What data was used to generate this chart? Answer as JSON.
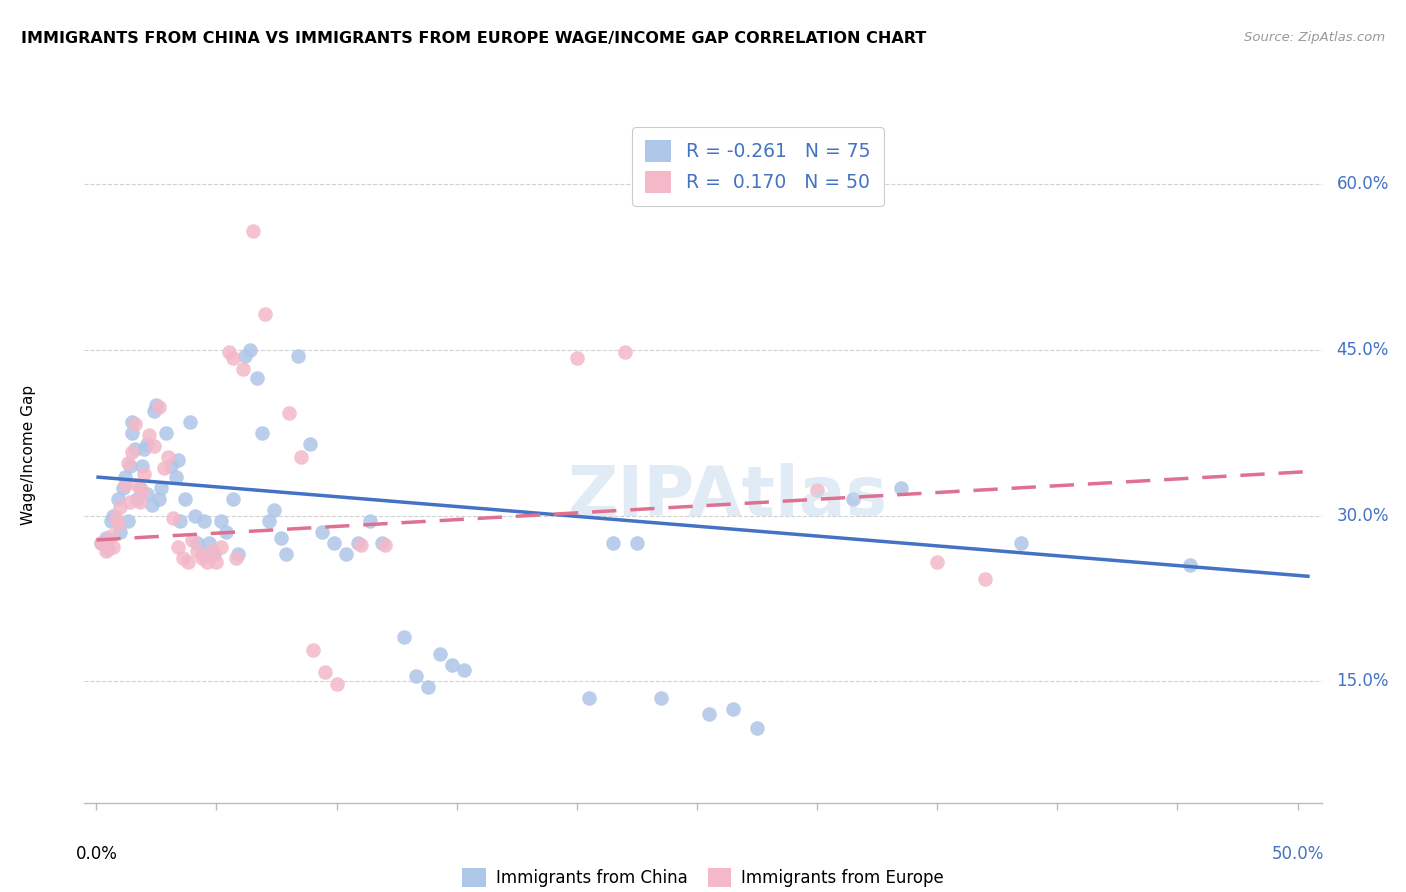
{
  "title": "IMMIGRANTS FROM CHINA VS IMMIGRANTS FROM EUROPE WAGE/INCOME GAP CORRELATION CHART",
  "source": "Source: ZipAtlas.com",
  "ylabel": "Wage/Income Gap",
  "yticks": [
    0.15,
    0.3,
    0.45,
    0.6
  ],
  "ytick_labels": [
    "15.0%",
    "30.0%",
    "45.0%",
    "60.0%"
  ],
  "xlim": [
    -0.005,
    0.51
  ],
  "ylim": [
    0.04,
    0.67
  ],
  "grid_color": "#cccccc",
  "watermark": "ZIPAtlas",
  "legend_r_china": "-0.261",
  "legend_n_china": "75",
  "legend_r_europe": "0.170",
  "legend_n_europe": "50",
  "china_color": "#aec6e8",
  "europe_color": "#f4b8c8",
  "line_china_color": "#4472c4",
  "line_europe_color": "#e07090",
  "china_points": [
    [
      0.002,
      0.275
    ],
    [
      0.004,
      0.28
    ],
    [
      0.005,
      0.27
    ],
    [
      0.006,
      0.295
    ],
    [
      0.007,
      0.3
    ],
    [
      0.009,
      0.315
    ],
    [
      0.01,
      0.285
    ],
    [
      0.011,
      0.325
    ],
    [
      0.012,
      0.335
    ],
    [
      0.013,
      0.295
    ],
    [
      0.014,
      0.345
    ],
    [
      0.015,
      0.385
    ],
    [
      0.015,
      0.375
    ],
    [
      0.016,
      0.36
    ],
    [
      0.017,
      0.315
    ],
    [
      0.018,
      0.325
    ],
    [
      0.019,
      0.345
    ],
    [
      0.02,
      0.36
    ],
    [
      0.021,
      0.365
    ],
    [
      0.021,
      0.32
    ],
    [
      0.023,
      0.31
    ],
    [
      0.024,
      0.395
    ],
    [
      0.025,
      0.4
    ],
    [
      0.026,
      0.315
    ],
    [
      0.027,
      0.325
    ],
    [
      0.029,
      0.375
    ],
    [
      0.031,
      0.345
    ],
    [
      0.033,
      0.335
    ],
    [
      0.034,
      0.35
    ],
    [
      0.035,
      0.295
    ],
    [
      0.037,
      0.315
    ],
    [
      0.039,
      0.385
    ],
    [
      0.041,
      0.3
    ],
    [
      0.042,
      0.275
    ],
    [
      0.044,
      0.265
    ],
    [
      0.045,
      0.295
    ],
    [
      0.047,
      0.275
    ],
    [
      0.049,
      0.265
    ],
    [
      0.052,
      0.295
    ],
    [
      0.054,
      0.285
    ],
    [
      0.057,
      0.315
    ],
    [
      0.059,
      0.265
    ],
    [
      0.062,
      0.445
    ],
    [
      0.064,
      0.45
    ],
    [
      0.067,
      0.425
    ],
    [
      0.069,
      0.375
    ],
    [
      0.072,
      0.295
    ],
    [
      0.074,
      0.305
    ],
    [
      0.077,
      0.28
    ],
    [
      0.079,
      0.265
    ],
    [
      0.084,
      0.445
    ],
    [
      0.089,
      0.365
    ],
    [
      0.094,
      0.285
    ],
    [
      0.099,
      0.275
    ],
    [
      0.104,
      0.265
    ],
    [
      0.109,
      0.275
    ],
    [
      0.114,
      0.295
    ],
    [
      0.119,
      0.275
    ],
    [
      0.128,
      0.19
    ],
    [
      0.133,
      0.155
    ],
    [
      0.138,
      0.145
    ],
    [
      0.143,
      0.175
    ],
    [
      0.148,
      0.165
    ],
    [
      0.153,
      0.16
    ],
    [
      0.205,
      0.135
    ],
    [
      0.215,
      0.275
    ],
    [
      0.225,
      0.275
    ],
    [
      0.235,
      0.135
    ],
    [
      0.255,
      0.12
    ],
    [
      0.265,
      0.125
    ],
    [
      0.275,
      0.108
    ],
    [
      0.315,
      0.315
    ],
    [
      0.335,
      0.325
    ],
    [
      0.385,
      0.275
    ],
    [
      0.455,
      0.255
    ]
  ],
  "europe_points": [
    [
      0.002,
      0.275
    ],
    [
      0.004,
      0.268
    ],
    [
      0.006,
      0.282
    ],
    [
      0.007,
      0.272
    ],
    [
      0.008,
      0.298
    ],
    [
      0.009,
      0.292
    ],
    [
      0.01,
      0.308
    ],
    [
      0.012,
      0.328
    ],
    [
      0.013,
      0.348
    ],
    [
      0.014,
      0.312
    ],
    [
      0.015,
      0.358
    ],
    [
      0.016,
      0.383
    ],
    [
      0.017,
      0.328
    ],
    [
      0.018,
      0.312
    ],
    [
      0.019,
      0.322
    ],
    [
      0.02,
      0.338
    ],
    [
      0.022,
      0.373
    ],
    [
      0.024,
      0.363
    ],
    [
      0.026,
      0.398
    ],
    [
      0.028,
      0.343
    ],
    [
      0.03,
      0.353
    ],
    [
      0.032,
      0.298
    ],
    [
      0.034,
      0.272
    ],
    [
      0.036,
      0.262
    ],
    [
      0.038,
      0.258
    ],
    [
      0.04,
      0.278
    ],
    [
      0.042,
      0.268
    ],
    [
      0.044,
      0.262
    ],
    [
      0.046,
      0.258
    ],
    [
      0.048,
      0.268
    ],
    [
      0.05,
      0.258
    ],
    [
      0.052,
      0.272
    ],
    [
      0.055,
      0.448
    ],
    [
      0.057,
      0.443
    ],
    [
      0.058,
      0.262
    ],
    [
      0.061,
      0.433
    ],
    [
      0.065,
      0.558
    ],
    [
      0.07,
      0.483
    ],
    [
      0.08,
      0.393
    ],
    [
      0.085,
      0.353
    ],
    [
      0.09,
      0.178
    ],
    [
      0.095,
      0.158
    ],
    [
      0.1,
      0.148
    ],
    [
      0.11,
      0.273
    ],
    [
      0.12,
      0.273
    ],
    [
      0.2,
      0.443
    ],
    [
      0.22,
      0.448
    ],
    [
      0.3,
      0.323
    ],
    [
      0.35,
      0.258
    ],
    [
      0.37,
      0.243
    ]
  ],
  "china_line_x": [
    0.0,
    0.505
  ],
  "china_line_y": [
    0.335,
    0.245
  ],
  "europe_line_x": [
    0.0,
    0.505
  ],
  "europe_line_y": [
    0.278,
    0.34
  ]
}
